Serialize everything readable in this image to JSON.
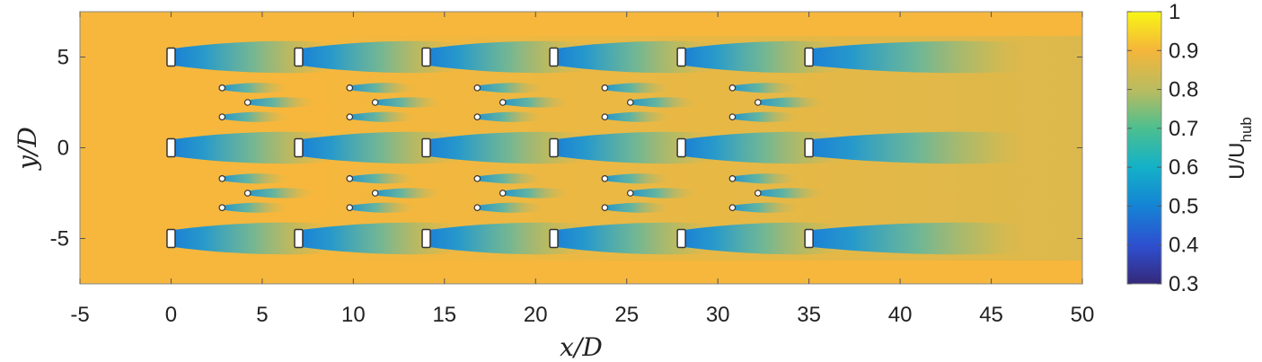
{
  "chart_data": {
    "type": "heatmap",
    "description_of_field": "wake velocity contours",
    "xlabel": "x/D",
    "ylabel": "y/D",
    "xlim": [
      -5,
      50
    ],
    "ylim": [
      -7.5,
      7.5
    ],
    "x_ticks": [
      -5,
      0,
      5,
      10,
      15,
      20,
      25,
      30,
      35,
      40,
      45,
      50
    ],
    "y_ticks": [
      5,
      0,
      -5
    ],
    "colorbar": {
      "label_main": "U/U",
      "label_sub": "hub",
      "range": [
        0.3,
        1
      ],
      "ticks": [
        "1",
        "0.9",
        "0.8",
        "0.7",
        "0.6",
        "0.5",
        "0.4",
        "0.3"
      ],
      "tick_values": [
        1,
        0.9,
        0.8,
        0.7,
        0.6,
        0.5,
        0.4,
        0.3
      ]
    },
    "freestream_value": 0.9,
    "large_turbines": [
      {
        "x": 0,
        "y": 5
      },
      {
        "x": 7,
        "y": 5
      },
      {
        "x": 14,
        "y": 5
      },
      {
        "x": 21,
        "y": 5
      },
      {
        "x": 28,
        "y": 5
      },
      {
        "x": 35,
        "y": 5
      },
      {
        "x": 0,
        "y": 0
      },
      {
        "x": 7,
        "y": 0
      },
      {
        "x": 14,
        "y": 0
      },
      {
        "x": 21,
        "y": 0
      },
      {
        "x": 28,
        "y": 0
      },
      {
        "x": 35,
        "y": 0
      },
      {
        "x": 0,
        "y": -5
      },
      {
        "x": 7,
        "y": -5
      },
      {
        "x": 14,
        "y": -5
      },
      {
        "x": 21,
        "y": -5
      },
      {
        "x": 28,
        "y": -5
      },
      {
        "x": 35,
        "y": -5
      }
    ],
    "small_turbines": [
      {
        "x": 2.8,
        "y": 3.3
      },
      {
        "x": 4.2,
        "y": 2.5
      },
      {
        "x": 2.8,
        "y": 1.7
      },
      {
        "x": 9.8,
        "y": 3.3
      },
      {
        "x": 11.2,
        "y": 2.5
      },
      {
        "x": 9.8,
        "y": 1.7
      },
      {
        "x": 16.8,
        "y": 3.3
      },
      {
        "x": 18.2,
        "y": 2.5
      },
      {
        "x": 16.8,
        "y": 1.7
      },
      {
        "x": 23.8,
        "y": 3.3
      },
      {
        "x": 25.2,
        "y": 2.5
      },
      {
        "x": 23.8,
        "y": 1.7
      },
      {
        "x": 30.8,
        "y": 3.3
      },
      {
        "x": 32.2,
        "y": 2.5
      },
      {
        "x": 30.8,
        "y": 1.7
      },
      {
        "x": 2.8,
        "y": -1.7
      },
      {
        "x": 4.2,
        "y": -2.5
      },
      {
        "x": 2.8,
        "y": -3.3
      },
      {
        "x": 9.8,
        "y": -1.7
      },
      {
        "x": 11.2,
        "y": -2.5
      },
      {
        "x": 9.8,
        "y": -3.3
      },
      {
        "x": 16.8,
        "y": -1.7
      },
      {
        "x": 18.2,
        "y": -2.5
      },
      {
        "x": 16.8,
        "y": -3.3
      },
      {
        "x": 23.8,
        "y": -1.7
      },
      {
        "x": 25.2,
        "y": -2.5
      },
      {
        "x": 23.8,
        "y": -3.3
      },
      {
        "x": 30.8,
        "y": -1.7
      },
      {
        "x": 32.2,
        "y": -2.5
      },
      {
        "x": 30.8,
        "y": -3.3
      }
    ],
    "large_wake_min_value": 0.55,
    "small_wake_min_value": 0.6
  }
}
